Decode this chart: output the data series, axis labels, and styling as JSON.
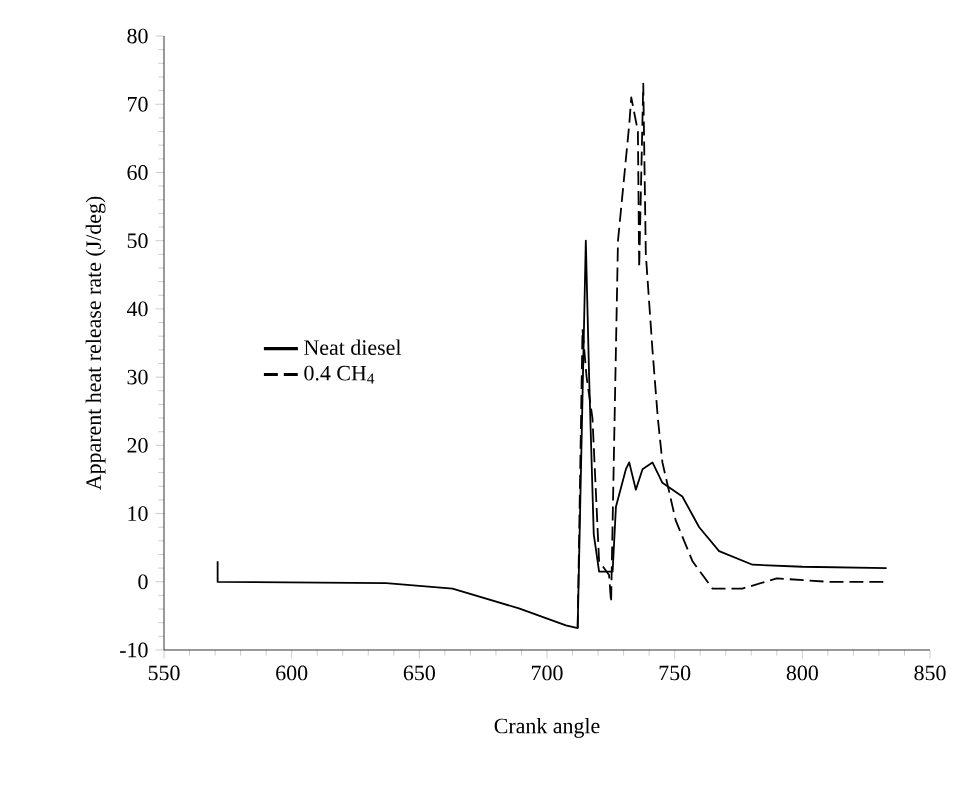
{
  "chart_data": {
    "type": "line",
    "xlabel": "Crank angle",
    "ylabel": "Apparent heat release rate (J/deg)",
    "xlim": [
      550,
      850
    ],
    "xticks": [
      550,
      600,
      650,
      700,
      750,
      800,
      850
    ],
    "ylim": [
      -10,
      80
    ],
    "yticks": [
      -10,
      0,
      10,
      20,
      30,
      40,
      50,
      60,
      70,
      80
    ],
    "legend": "left",
    "grid": false,
    "series": [
      {
        "name": "Neat diesel",
        "color": "#000000",
        "line_style": "solid",
        "x": [
          571,
          571,
          637,
          663,
          689,
          707.4,
          712,
          715.2,
          716.5,
          718.3,
          720.4,
          725.7,
          727,
          730.9,
          732.2,
          734.8,
          737.4,
          741.3,
          745.2,
          753,
          759.6,
          767.4,
          780.5,
          800,
          833
        ],
        "values": [
          3,
          0,
          -0.2,
          -1,
          -3.9,
          -6.4,
          -6.8,
          50,
          30,
          7,
          1.5,
          1.5,
          11,
          16.5,
          17.5,
          13.5,
          16.5,
          17.5,
          14.5,
          12.5,
          8,
          4.5,
          2.5,
          2.2,
          2
        ]
      },
      {
        "name": "0.4 CH$_{4}$",
        "color": "#000000",
        "line_style": "dashed",
        "x": [
          712,
          713.9,
          715.5,
          717.8,
          720.4,
          724.3,
          725.1,
          727.8,
          732.2,
          733,
          735.6,
          736.1,
          737.7,
          738.7,
          741.3,
          743.4,
          745.2,
          750.4,
          757,
          764.8,
          776.5,
          790,
          810,
          833
        ],
        "values": [
          -6.8,
          37,
          30,
          24,
          3,
          1,
          -3,
          50,
          67,
          71,
          66,
          46,
          73,
          48,
          34,
          24,
          17.5,
          9,
          3,
          -1,
          -1,
          0.5,
          0,
          0
        ]
      }
    ]
  }
}
